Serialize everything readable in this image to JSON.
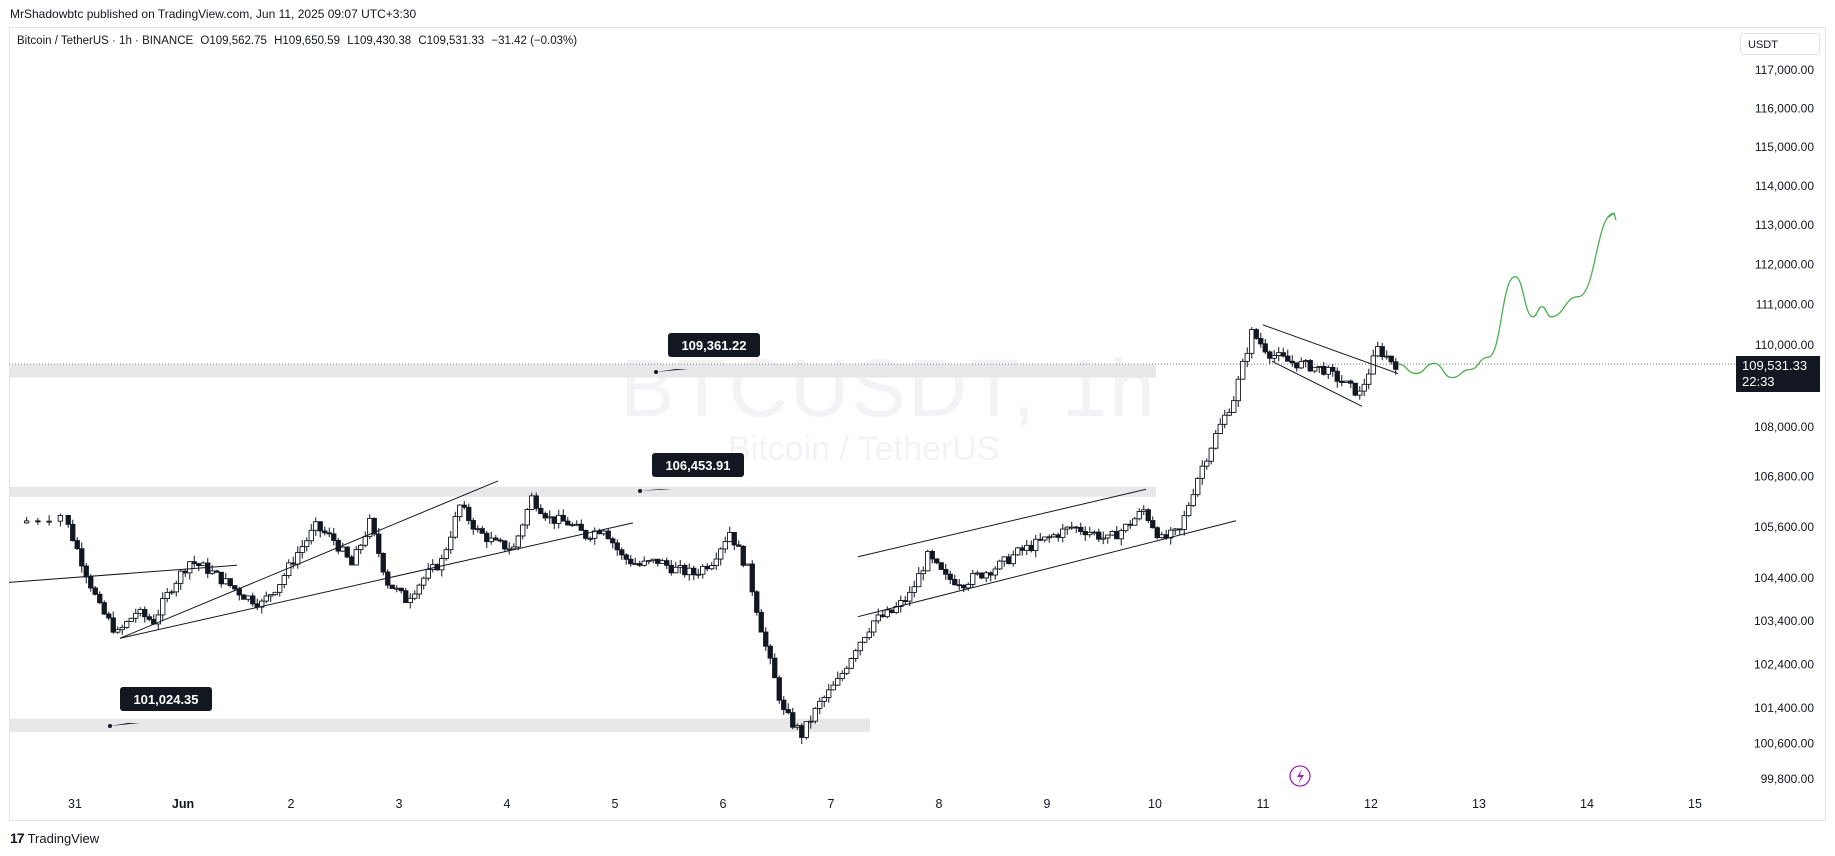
{
  "header": {
    "published": "MrShadowbtc published on TradingView.com, Jun 11, 2025 09:07 UTC+3:30"
  },
  "symbol": {
    "name": "Bitcoin / TetherUS · 1h · BINANCE",
    "open": "O109,562.75",
    "high": "H109,650.59",
    "low": "L109,430.38",
    "close": "C109,531.33",
    "change": "−31.42 (−0.03%)"
  },
  "watermark": {
    "ticker": "BTCUSDT, 1h",
    "name": "Bitcoin / TetherUS"
  },
  "footer": {
    "brand": "TradingView"
  },
  "currency": "USDT",
  "last_price": {
    "price": "109,531.33",
    "countdown": "22:33"
  },
  "colors": {
    "candle": "#131722",
    "forecast": "#4caf50",
    "zone": "#e8e8e8",
    "bolt": "#9c27b0"
  },
  "chart_data": {
    "type": "candlestick",
    "title": "",
    "xlabel": "",
    "ylabel": "",
    "y_scale": "log",
    "ylim": [
      99500,
      117500
    ],
    "x_ticks": [
      "31",
      "Jun",
      "2",
      "3",
      "4",
      "5",
      "6",
      "7",
      "8",
      "9",
      "10",
      "11",
      "12",
      "13",
      "14",
      "15"
    ],
    "y_ticks": [
      "117,000.00",
      "116,000.00",
      "115,000.00",
      "114,000.00",
      "113,000.00",
      "112,000.00",
      "111,000.00",
      "110,000.00",
      "108,000.00",
      "106,800.00",
      "105,600.00",
      "104,400.00",
      "103,400.00",
      "102,400.00",
      "101,400.00",
      "100,600.00",
      "99,800.00"
    ],
    "y_tick_values": [
      117000,
      116000,
      115000,
      114000,
      113000,
      112000,
      111000,
      110000,
      108000,
      106800,
      105600,
      104400,
      103400,
      102400,
      101400,
      100600,
      99800
    ],
    "close_path": [
      [
        "May 30 12:00",
        105700
      ],
      [
        "May 30 22:00",
        105900
      ],
      [
        "May 31 02:00",
        104800
      ],
      [
        "May 31 06:00",
        103700
      ],
      [
        "May 31 10:00",
        103100
      ],
      [
        "May 31 14:00",
        103600
      ],
      [
        "May 31 18:00",
        103400
      ],
      [
        "May 31 22:00",
        104200
      ],
      [
        "Jun 1 02:00",
        104800
      ],
      [
        "Jun 1 06:00",
        104600
      ],
      [
        "Jun 1 10:00",
        104300
      ],
      [
        "Jun 1 14:00",
        104000
      ],
      [
        "Jun 1 18:00",
        103800
      ],
      [
        "Jun 1 22:00",
        104300
      ],
      [
        "Jun 2 02:00",
        105000
      ],
      [
        "Jun 2 06:00",
        105600
      ],
      [
        "Jun 2 10:00",
        105300
      ],
      [
        "Jun 2 14:00",
        104700
      ],
      [
        "Jun 2 18:00",
        105700
      ],
      [
        "Jun 2 22:00",
        104300
      ],
      [
        "Jun 3 02:00",
        103900
      ],
      [
        "Jun 3 06:00",
        104400
      ],
      [
        "Jun 3 10:00",
        104800
      ],
      [
        "Jun 3 14:00",
        106100
      ],
      [
        "Jun 3 18:00",
        105500
      ],
      [
        "Jun 3 22:00",
        105200
      ],
      [
        "Jun 4 02:00",
        105100
      ],
      [
        "Jun 4 06:00",
        106300
      ],
      [
        "Jun 4 10:00",
        105800
      ],
      [
        "Jun 4 14:00",
        105700
      ],
      [
        "Jun 4 18:00",
        105400
      ],
      [
        "Jun 4 22:00",
        105600
      ],
      [
        "Jun 5 02:00",
        104900
      ],
      [
        "Jun 5 06:00",
        104700
      ],
      [
        "Jun 5 10:00",
        104800
      ],
      [
        "Jun 5 14:00",
        104600
      ],
      [
        "Jun 5 18:00",
        104500
      ],
      [
        "Jun 5 22:00",
        104800
      ],
      [
        "Jun 6 02:00",
        105500
      ],
      [
        "Jun 6 06:00",
        104600
      ],
      [
        "Jun 6 10:00",
        102800
      ],
      [
        "Jun 6 14:00",
        101300
      ],
      [
        "Jun 6 18:00",
        100800
      ],
      [
        "Jun 6 22:00",
        101500
      ],
      [
        "Jun 7 02:00",
        102000
      ],
      [
        "Jun 7 06:00",
        102800
      ],
      [
        "Jun 7 10:00",
        103400
      ],
      [
        "Jun 7 14:00",
        103600
      ],
      [
        "Jun 7 18:00",
        104000
      ],
      [
        "Jun 7 22:00",
        104900
      ],
      [
        "Jun 8 02:00",
        104400
      ],
      [
        "Jun 8 06:00",
        104300
      ],
      [
        "Jun 8 10:00",
        104500
      ],
      [
        "Jun 8 14:00",
        104700
      ],
      [
        "Jun 8 18:00",
        105000
      ],
      [
        "Jun 8 22:00",
        105200
      ],
      [
        "Jun 9 02:00",
        105400
      ],
      [
        "Jun 9 06:00",
        105600
      ],
      [
        "Jun 9 10:00",
        105500
      ],
      [
        "Jun 9 14:00",
        105300
      ],
      [
        "Jun 9 18:00",
        105600
      ],
      [
        "Jun 9 22:00",
        106000
      ],
      [
        "Jun 10 02:00",
        105300
      ],
      [
        "Jun 10 06:00",
        105500
      ],
      [
        "Jun 10 10:00",
        106800
      ],
      [
        "Jun 10 14:00",
        107800
      ],
      [
        "Jun 10 18:00",
        108700
      ],
      [
        "Jun 10 22:00",
        110300
      ],
      [
        "Jun 11 02:00",
        109800
      ],
      [
        "Jun 11 06:00",
        109600
      ],
      [
        "Jun 11 10:00",
        109500
      ],
      [
        "Jun 11 14:00",
        109400
      ],
      [
        "Jun 11 18:00",
        109100
      ],
      [
        "Jun 11 22:00",
        108800
      ],
      [
        "Jun 12 02:00",
        109900
      ],
      [
        "Jun 12 06:00",
        109531
      ]
    ],
    "annotations": [
      {
        "text": "109,361.22",
        "price": 109361.22
      },
      {
        "text": "106,453.91",
        "price": 106453.91
      },
      {
        "text": "101,024.35",
        "price": 101024.35
      }
    ],
    "zones": [
      {
        "low": 109200,
        "high": 109520
      },
      {
        "low": 106320,
        "high": 106560
      },
      {
        "low": 100860,
        "high": 101160
      }
    ],
    "forecast_path": [
      [
        "Jun 12 06:00",
        109531
      ],
      [
        "Jun 12 10:00",
        109300
      ],
      [
        "Jun 12 14:00",
        109550
      ],
      [
        "Jun 12 18:00",
        109200
      ],
      [
        "Jun 12 22:00",
        109400
      ],
      [
        "Jun 13 02:00",
        109700
      ],
      [
        "Jun 13 08:00",
        111700
      ],
      [
        "Jun 13 12:00",
        110700
      ],
      [
        "Jun 13 14:00",
        110950
      ],
      [
        "Jun 13 16:00",
        110700
      ],
      [
        "Jun 13 22:00",
        111200
      ],
      [
        "Jun 14 06:00",
        113300
      ]
    ],
    "grid": false,
    "legend": "none"
  }
}
